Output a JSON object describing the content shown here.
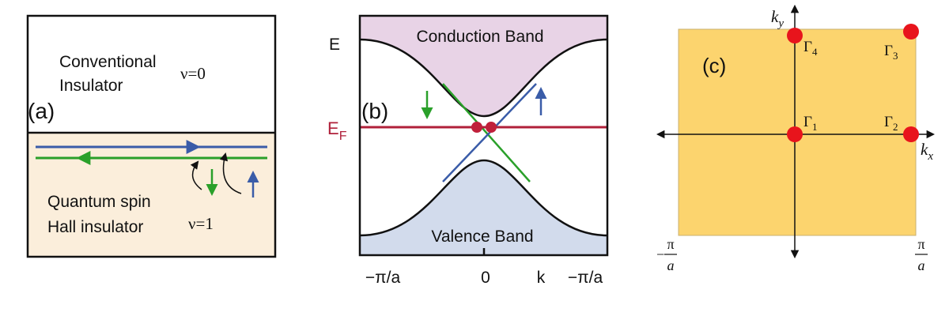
{
  "panel_a": {
    "label": "(a)",
    "top_lines": [
      "Conventional",
      "Insulator"
    ],
    "top_index": "ν=0",
    "bottom_lines": [
      "Quantum spin",
      "Hall insulator"
    ],
    "bottom_index": "ν=1"
  },
  "panel_b": {
    "label": "(b)",
    "conduction": "Conduction Band",
    "valence": "Valence Band",
    "energy_axis": "E",
    "fermi": {
      "main": "E",
      "sub": "F"
    },
    "x_labels": [
      "−π/a",
      "0",
      "k",
      "−π/a"
    ]
  },
  "panel_c": {
    "label": "(c)",
    "ky": {
      "main": "k",
      "sub": "y"
    },
    "kx": {
      "main": "k",
      "sub": "x"
    },
    "points": [
      {
        "main": "Γ",
        "sub": "4"
      },
      {
        "main": "Γ",
        "sub": "3"
      },
      {
        "main": "Γ",
        "sub": "1"
      },
      {
        "main": "Γ",
        "sub": "2"
      }
    ],
    "left_edge": {
      "sign": "−",
      "num": "π",
      "den": "a"
    },
    "right_edge": {
      "num": "π",
      "den": "a"
    }
  }
}
